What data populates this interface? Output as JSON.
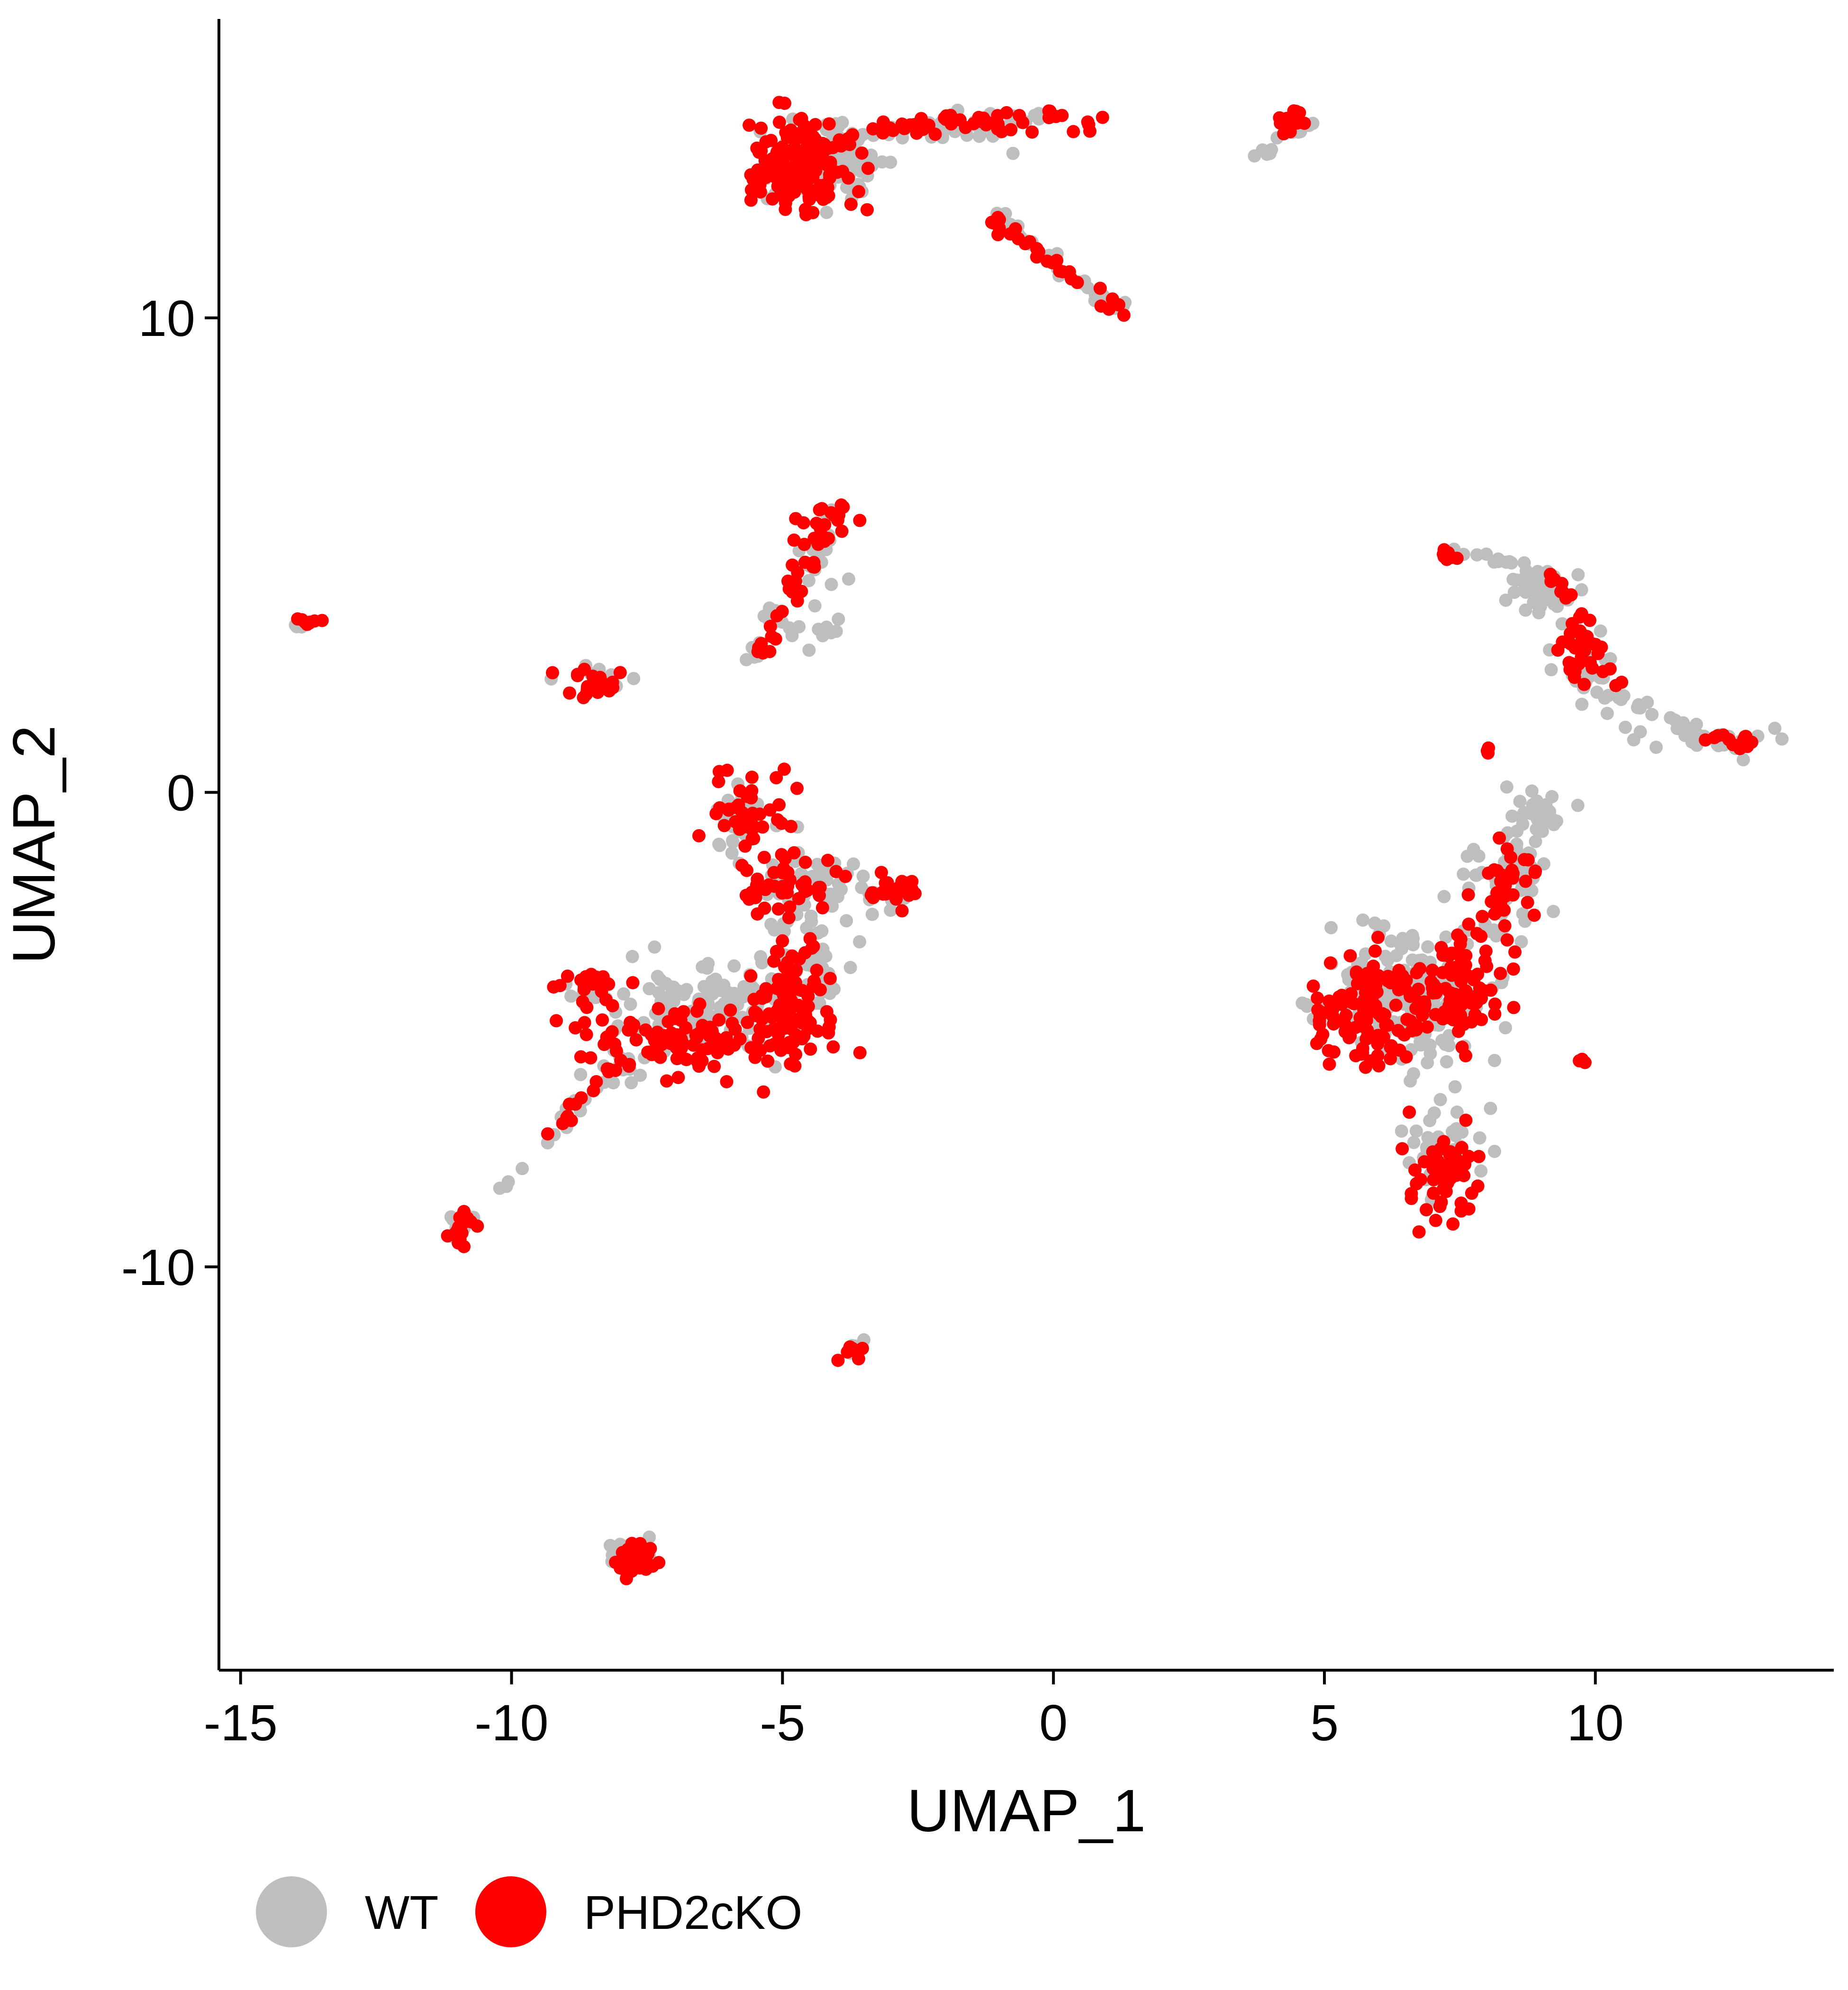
{
  "chart_data": {
    "type": "scatter",
    "xlabel": "UMAP_1",
    "ylabel": "UMAP_2",
    "xlim": [
      -15.4,
      14.4
    ],
    "ylim": [
      -18.5,
      16.3
    ],
    "xticks": [
      -15,
      -10,
      -5,
      0,
      5,
      10
    ],
    "yticks": [
      -10,
      0,
      10
    ],
    "xtick_labels": [
      "-15",
      "-10",
      "-5",
      "0",
      "5",
      "10"
    ],
    "ytick_labels": [
      "-10",
      "0",
      "10"
    ],
    "grid": false,
    "legend_position": "bottom-left",
    "series": [
      {
        "name": "WT",
        "color": "#BEBEBE",
        "clusters": [
          {
            "cx": -4.2,
            "cy": 13.2,
            "sx": 0.55,
            "sy": 0.45,
            "n": 110
          },
          {
            "cx": -1.5,
            "cy": 14.0,
            "sx": 0.8,
            "sy": 0.15,
            "n": 25
          },
          {
            "cx": 4.4,
            "cy": 14.0,
            "sx": 0.15,
            "sy": 0.15,
            "n": 12
          },
          {
            "cx": -4.4,
            "cy": 3.7,
            "sx": 0.3,
            "sy": 0.4,
            "n": 15
          },
          {
            "cx": -13.9,
            "cy": 3.5,
            "sx": 0.1,
            "sy": 0.05,
            "n": 4
          },
          {
            "cx": -8.4,
            "cy": 2.4,
            "sx": 0.3,
            "sy": 0.15,
            "n": 12
          },
          {
            "cx": -5.8,
            "cy": -0.6,
            "sx": 0.35,
            "sy": 0.4,
            "n": 30
          },
          {
            "cx": -4.4,
            "cy": -2.0,
            "sx": 0.6,
            "sy": 0.35,
            "n": 45
          },
          {
            "cx": -3.0,
            "cy": -2.2,
            "sx": 0.35,
            "sy": 0.15,
            "n": 10
          },
          {
            "cx": -6.4,
            "cy": -4.6,
            "sx": 0.8,
            "sy": 0.45,
            "n": 130
          },
          {
            "cx": -4.7,
            "cy": -3.7,
            "sx": 0.35,
            "sy": 0.6,
            "n": 45
          },
          {
            "cx": -8.5,
            "cy": -4.3,
            "sx": 0.3,
            "sy": 0.15,
            "n": 15
          },
          {
            "cx": -8.0,
            "cy": -5.8,
            "sx": 0.3,
            "sy": 0.4,
            "n": 12
          },
          {
            "cx": -10.9,
            "cy": -9.1,
            "sx": 0.15,
            "sy": 0.15,
            "n": 12
          },
          {
            "cx": -3.7,
            "cy": -11.7,
            "sx": 0.1,
            "sy": 0.08,
            "n": 5
          },
          {
            "cx": -7.8,
            "cy": -16.1,
            "sx": 0.2,
            "sy": 0.18,
            "n": 25
          },
          {
            "cx": 6.5,
            "cy": -4.4,
            "sx": 0.7,
            "sy": 0.65,
            "n": 220
          },
          {
            "cx": 8.2,
            "cy": -2.0,
            "sx": 0.5,
            "sy": 0.6,
            "n": 45
          },
          {
            "cx": 8.8,
            "cy": -0.4,
            "sx": 0.3,
            "sy": 0.3,
            "n": 20
          },
          {
            "cx": 7.2,
            "cy": -7.5,
            "sx": 0.35,
            "sy": 0.6,
            "n": 35
          },
          {
            "cx": 9.0,
            "cy": 4.2,
            "sx": 0.35,
            "sy": 0.25,
            "n": 30
          },
          {
            "cx": 9.9,
            "cy": 2.6,
            "sx": 0.25,
            "sy": 0.5,
            "n": 25
          },
          {
            "cx": 12.0,
            "cy": 1.1,
            "sx": 0.6,
            "sy": 0.15,
            "n": 20
          }
        ],
        "paths": [
          {
            "from": [
              -3.3,
              13.9
            ],
            "to": [
              0.0,
              14.3
            ],
            "n": 15,
            "jitter": 0.08
          },
          {
            "from": [
              -1.2,
              12.2
            ],
            "to": [
              1.3,
              10.1
            ],
            "n": 30,
            "jitter": 0.08
          },
          {
            "from": [
              3.7,
              13.3
            ],
            "to": [
              4.4,
              14.0
            ],
            "n": 8,
            "jitter": 0.06
          },
          {
            "from": [
              -5.8,
              2.6
            ],
            "to": [
              -3.9,
              5.9
            ],
            "n": 35,
            "jitter": 0.12
          },
          {
            "from": [
              7.4,
              5.1
            ],
            "to": [
              9.2,
              4.5
            ],
            "n": 22,
            "jitter": 0.1
          },
          {
            "from": [
              10.0,
              2.2
            ],
            "to": [
              12.8,
              0.8
            ],
            "n": 22,
            "jitter": 0.1
          },
          {
            "from": [
              8.0,
              -3.0
            ],
            "to": [
              9.1,
              -0.2
            ],
            "n": 30,
            "jitter": 0.15
          },
          {
            "from": [
              -9.4,
              -7.4
            ],
            "to": [
              -7.9,
              -5.6
            ],
            "n": 18,
            "jitter": 0.08
          },
          {
            "from": [
              -10.6,
              -8.6
            ],
            "to": [
              -9.8,
              -8.0
            ],
            "n": 4,
            "jitter": 0.05
          }
        ]
      },
      {
        "name": "PHD2cKO",
        "color": "#FF0000",
        "clusters": [
          {
            "cx": -4.6,
            "cy": 13.2,
            "sx": 0.5,
            "sy": 0.45,
            "n": 170
          },
          {
            "cx": -1.0,
            "cy": 14.1,
            "sx": 0.8,
            "sy": 0.12,
            "n": 25
          },
          {
            "cx": 4.4,
            "cy": 14.2,
            "sx": 0.12,
            "sy": 0.15,
            "n": 18
          },
          {
            "cx": -13.8,
            "cy": 3.6,
            "sx": 0.12,
            "sy": 0.05,
            "n": 8
          },
          {
            "cx": -8.6,
            "cy": 2.3,
            "sx": 0.3,
            "sy": 0.15,
            "n": 22
          },
          {
            "cx": -4.3,
            "cy": 5.5,
            "sx": 0.25,
            "sy": 0.3,
            "n": 15
          },
          {
            "cx": -5.7,
            "cy": -0.4,
            "sx": 0.35,
            "sy": 0.45,
            "n": 40
          },
          {
            "cx": -4.9,
            "cy": -1.9,
            "sx": 0.5,
            "sy": 0.35,
            "n": 45
          },
          {
            "cx": -2.8,
            "cy": -2.0,
            "sx": 0.25,
            "sy": 0.2,
            "n": 15
          },
          {
            "cx": -6.9,
            "cy": -5.2,
            "sx": 0.8,
            "sy": 0.35,
            "n": 100
          },
          {
            "cx": -4.8,
            "cy": -4.5,
            "sx": 0.4,
            "sy": 0.7,
            "n": 110
          },
          {
            "cx": -8.6,
            "cy": -4.1,
            "sx": 0.3,
            "sy": 0.15,
            "n": 22
          },
          {
            "cx": -10.9,
            "cy": -9.2,
            "sx": 0.15,
            "sy": 0.15,
            "n": 18
          },
          {
            "cx": -3.7,
            "cy": -11.8,
            "sx": 0.1,
            "sy": 0.07,
            "n": 8
          },
          {
            "cx": -7.7,
            "cy": -16.2,
            "sx": 0.2,
            "sy": 0.15,
            "n": 35
          },
          {
            "cx": 5.8,
            "cy": -4.7,
            "sx": 0.5,
            "sy": 0.6,
            "n": 110
          },
          {
            "cx": 7.4,
            "cy": -4.2,
            "sx": 0.6,
            "sy": 0.6,
            "n": 90
          },
          {
            "cx": 8.3,
            "cy": -2.0,
            "sx": 0.3,
            "sy": 0.5,
            "n": 35
          },
          {
            "cx": 7.2,
            "cy": -7.9,
            "sx": 0.35,
            "sy": 0.55,
            "n": 60
          },
          {
            "cx": 9.7,
            "cy": 3.1,
            "sx": 0.2,
            "sy": 0.35,
            "n": 25
          },
          {
            "cx": 12.4,
            "cy": 1.1,
            "sx": 0.3,
            "sy": 0.1,
            "n": 12
          },
          {
            "cx": 7.3,
            "cy": 5.0,
            "sx": 0.12,
            "sy": 0.1,
            "n": 8
          },
          {
            "cx": 9.8,
            "cy": -5.7,
            "sx": 0.05,
            "sy": 0.05,
            "n": 3
          },
          {
            "cx": 8.0,
            "cy": 0.9,
            "sx": 0.05,
            "sy": 0.05,
            "n": 3
          }
        ],
        "paths": [
          {
            "from": [
              -3.2,
              14.0
            ],
            "to": [
              0.0,
              14.3
            ],
            "n": 25,
            "jitter": 0.08
          },
          {
            "from": [
              -1.2,
              12.2
            ],
            "to": [
              1.3,
              10.1
            ],
            "n": 30,
            "jitter": 0.07
          },
          {
            "from": [
              -5.5,
              2.6
            ],
            "to": [
              -3.9,
              6.2
            ],
            "n": 35,
            "jitter": 0.1
          },
          {
            "from": [
              9.2,
              4.5
            ],
            "to": [
              10.4,
              2.3
            ],
            "n": 18,
            "jitter": 0.1
          },
          {
            "from": [
              -9.3,
              -7.2
            ],
            "to": [
              -8.0,
              -5.6
            ],
            "n": 15,
            "jitter": 0.08
          },
          {
            "from": [
              -3.3,
              -2.1
            ],
            "to": [
              -2.5,
              -2.0
            ],
            "n": 8,
            "jitter": 0.1
          }
        ]
      }
    ]
  }
}
